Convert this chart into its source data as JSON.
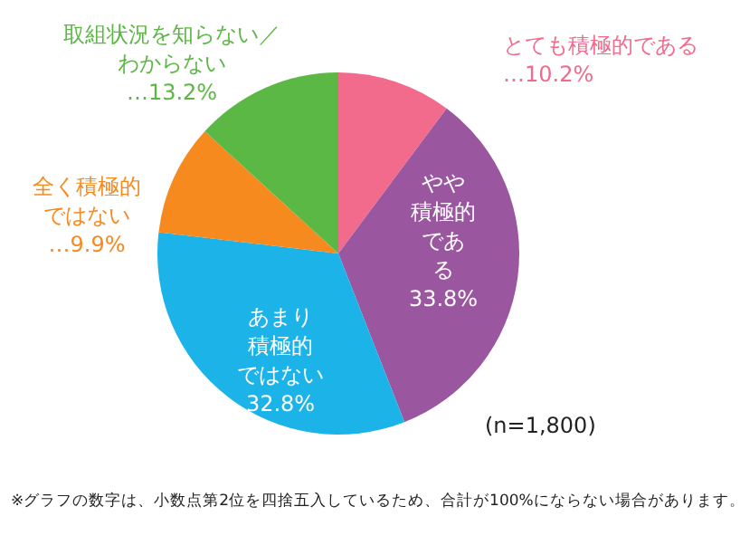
{
  "chart_data": {
    "type": "pie",
    "categories": [
      "とても積極的である",
      "やや積極的である",
      "あまり積極的ではない",
      "全く積極的ではない",
      "取組状況を知らない／わからない"
    ],
    "values": [
      10.2,
      33.8,
      32.8,
      9.9,
      13.2
    ],
    "value_labels": [
      "…10.2%",
      "33.8%",
      "32.8%",
      "…9.9%",
      "…13.2%"
    ],
    "colors": [
      "#f26b8c",
      "#9b56a0",
      "#1cb3e8",
      "#f68a1e",
      "#5cb845"
    ],
    "annotations": [
      "(n=1,800)",
      "※グラフの数字は、小数点第2位を四捨五入しているため、合計が100%にならない場合があります。"
    ]
  }
}
